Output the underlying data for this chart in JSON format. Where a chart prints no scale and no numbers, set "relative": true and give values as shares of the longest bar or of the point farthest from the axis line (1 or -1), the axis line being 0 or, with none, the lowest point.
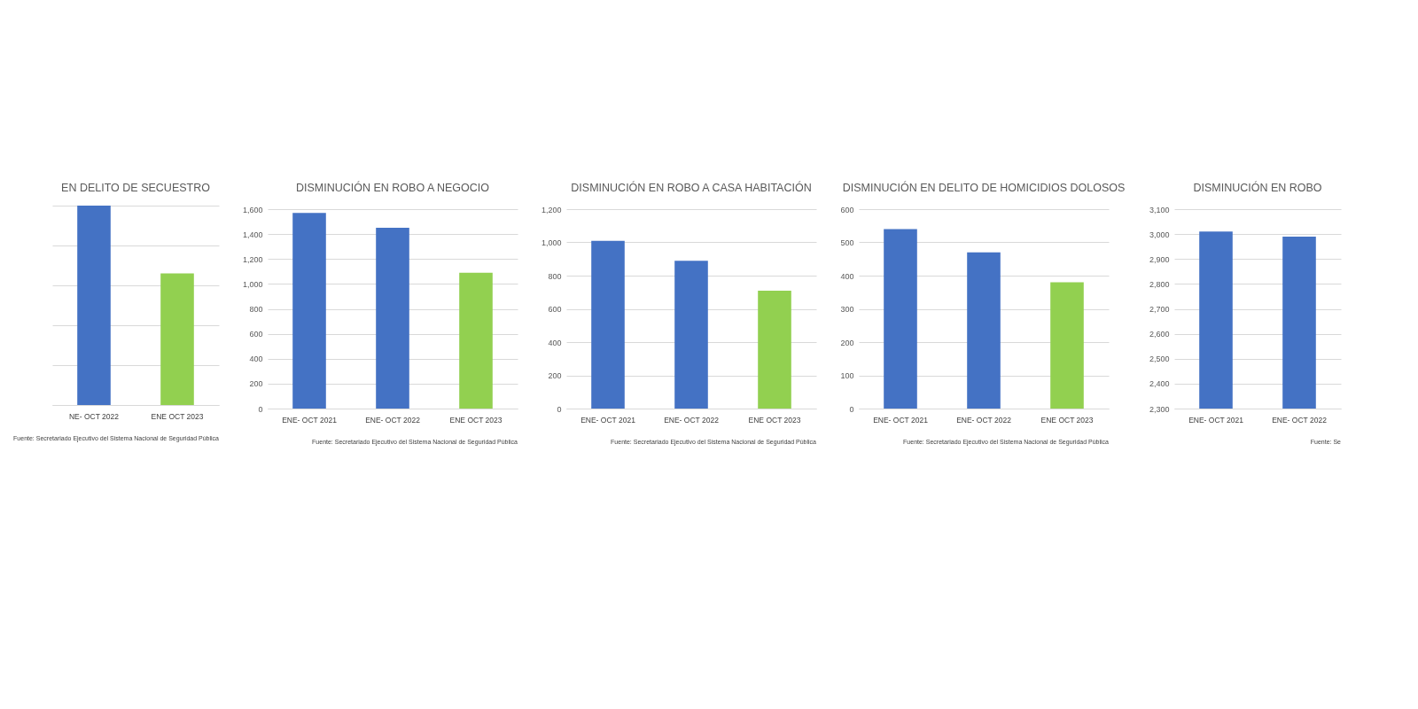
{
  "chart_data": [
    {
      "type": "bar",
      "title": "EN DELITO DE SECUESTRO",
      "categories": [
        "NE- OCT 2022",
        "ENE OCT 2023"
      ],
      "values": [
        1,
        0.66
      ],
      "colors": [
        "#4472c4",
        "#92d050"
      ],
      "relative": true,
      "grid": "y",
      "annotations": [
        "Fuente: Secretariado Ejecutivo del Sistema Nacional de Seguridad Pública"
      ]
    },
    {
      "type": "bar",
      "title": "DISMINUCIÓN EN ROBO A NEGOCIO",
      "categories": [
        "ENE- OCT 2021",
        "ENE- OCT 2022",
        "ENE OCT 2023"
      ],
      "values": [
        1570,
        1450,
        1090
      ],
      "colors": [
        "#4472c4",
        "#4472c4",
        "#92d050"
      ],
      "ylim": [
        0,
        1600
      ],
      "yticks": [
        0,
        200,
        400,
        600,
        800,
        {
          "value": 1000,
          "label": "1,000"
        },
        {
          "value": 1200,
          "label": "1,200"
        },
        {
          "value": 1400,
          "label": "1,400"
        },
        {
          "value": 1600,
          "label": "1,600"
        }
      ],
      "grid": "y",
      "annotations": [
        "Fuente: Secretariado Ejecutivo del Sistema Nacional de Seguridad Pública"
      ]
    },
    {
      "type": "bar",
      "title": "DISMINUCIÓN EN ROBO A CASA HABITACIÓN",
      "categories": [
        "ENE- OCT 2021",
        "ENE- OCT 2022",
        "ENE OCT 2023"
      ],
      "values": [
        1010,
        890,
        710
      ],
      "colors": [
        "#4472c4",
        "#4472c4",
        "#92d050"
      ],
      "ylim": [
        0,
        1200
      ],
      "yticks": [
        0,
        200,
        400,
        600,
        800,
        {
          "value": 1000,
          "label": "1,000"
        },
        {
          "value": 1200,
          "label": "1,200"
        }
      ],
      "grid": "y",
      "annotations": [
        "Fuente: Secretariado Ejecutivo del Sistema Nacional de Seguridad Pública"
      ]
    },
    {
      "type": "bar",
      "title": "DISMINUCIÓN EN DELITO DE HOMICIDIOS DOLOSOS",
      "categories": [
        "ENE- OCT 2021",
        "ENE- OCT 2022",
        "ENE OCT 2023"
      ],
      "values": [
        540,
        470,
        380
      ],
      "colors": [
        "#4472c4",
        "#4472c4",
        "#92d050"
      ],
      "ylim": [
        0,
        600
      ],
      "yticks": [
        0,
        100,
        200,
        300,
        400,
        500,
        600
      ],
      "grid": "y",
      "annotations": [
        "Fuente: Secretariado Ejecutivo del Sistema Nacional de Seguridad Pública"
      ]
    },
    {
      "type": "bar",
      "title": "DISMINUCIÓN EN ROBO",
      "categories": [
        "ENE- OCT 2021",
        "ENE- OCT 2022"
      ],
      "values": [
        3010,
        2990
      ],
      "colors": [
        "#4472c4",
        "#4472c4"
      ],
      "ylim": [
        2300,
        3100
      ],
      "yticks": [
        {
          "value": 2300,
          "label": "2,300"
        },
        {
          "value": 2400,
          "label": "2,400"
        },
        {
          "value": 2500,
          "label": "2,500"
        },
        {
          "value": 2600,
          "label": "2,600"
        },
        {
          "value": 2700,
          "label": "2,700"
        },
        {
          "value": 2800,
          "label": "2,800"
        },
        {
          "value": 2900,
          "label": "2,900"
        },
        {
          "value": 3000,
          "label": "3,000"
        },
        {
          "value": 3100,
          "label": "3,100"
        }
      ],
      "grid": "y",
      "annotations": [
        "Fuente: Se"
      ]
    }
  ]
}
